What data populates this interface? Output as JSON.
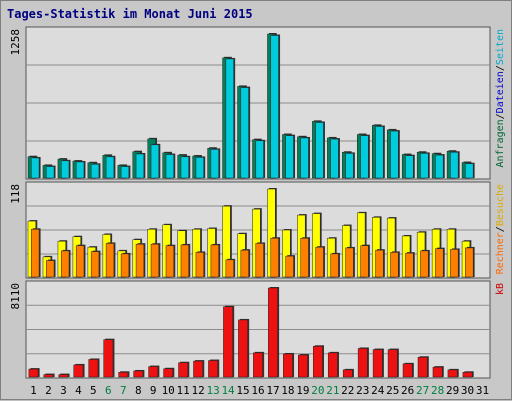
{
  "chart_data": {
    "type": "bar",
    "title": "Tages-Statistik im Monat Juni 2015",
    "categories": [
      "1",
      "2",
      "3",
      "4",
      "5",
      "6",
      "7",
      "8",
      "9",
      "10",
      "11",
      "12",
      "13",
      "14",
      "15",
      "16",
      "17",
      "18",
      "19",
      "20",
      "21",
      "22",
      "23",
      "24",
      "25",
      "26",
      "27",
      "28",
      "29",
      "30",
      "31"
    ],
    "weekend_days": [
      "6",
      "7",
      "13",
      "14",
      "20",
      "21",
      "27",
      "28"
    ],
    "colors": {
      "weekend_label": "#008040",
      "weekday_label": "#000000",
      "panel_bg": "#dcdcdc",
      "grid": "#8c8c8c",
      "anfragen": "#00805c",
      "dateien": "#00ccdd",
      "seiten": "#ffff00",
      "besuche": "#ff8000",
      "kb": "#ee1111",
      "legend_anfragen": "#006633",
      "legend_dateien": "#0000cc",
      "legend_seiten": "#00aacc",
      "legend_besuche": "#ddaa00",
      "legend_rechner": "#ff6600",
      "legend_kb": "#cc0000",
      "separator": "#000000"
    },
    "panels": [
      {
        "id": "requests",
        "max_label": "1258",
        "ylim": [
          0,
          1258
        ],
        "legend": [
          {
            "text": "Anfragen",
            "color_key": "legend_anfragen"
          },
          {
            "text": "/",
            "color_key": "separator"
          },
          {
            "text": "Dateien",
            "color_key": "legend_dateien"
          },
          {
            "text": "/",
            "color_key": "separator"
          },
          {
            "text": "Seiten",
            "color_key": "legend_seiten"
          }
        ],
        "series": [
          {
            "name": "Anfragen",
            "color_key": "anfragen",
            "values": [
              186,
              110,
              165,
              148,
              133,
              198,
              110,
              230,
              342,
              220,
              200,
              192,
              260,
              1050,
              800,
              335,
              1258,
              380,
              360,
              495,
              350,
              225,
              380,
              460,
              420,
              205,
              225,
              212,
              234,
              135,
              0
            ]
          },
          {
            "name": "Dateien",
            "color_key": "dateien",
            "values": [
              175,
              100,
              150,
              140,
              120,
              185,
              100,
              210,
              290,
              205,
              185,
              180,
              250,
              1040,
              790,
              325,
              1245,
              370,
              350,
              485,
              340,
              215,
              370,
              450,
              410,
              195,
              215,
              200,
              225,
              125,
              0
            ]
          }
        ]
      },
      {
        "id": "visits",
        "max_label": "118",
        "ylim": [
          0,
          118
        ],
        "legend": [
          {
            "text": "Rechner",
            "color_key": "legend_rechner"
          },
          {
            "text": "/",
            "color_key": "separator"
          },
          {
            "text": "Besuche",
            "color_key": "legend_besuche"
          }
        ],
        "series": [
          {
            "name": "Besuche",
            "color_key": "seiten",
            "values": [
              75,
              27,
              48,
              54,
              40,
              57,
              35,
              50,
              64,
              70,
              62,
              64,
              65,
              95,
              58,
              91,
              118,
              63,
              83,
              85,
              52,
              69,
              86,
              80,
              79,
              55,
              60,
              64,
              64,
              48,
              0
            ]
          },
          {
            "name": "Rechner",
            "color_key": "besuche",
            "values": [
              64,
              22,
              35,
              42,
              34,
              45,
              31,
              44,
              44,
              42,
              43,
              33,
              43,
              23,
              36,
              45,
              52,
              28,
              52,
              40,
              31,
              39,
              42,
              36,
              33,
              32,
              35,
              38,
              37,
              39,
              0
            ]
          }
        ]
      },
      {
        "id": "kb",
        "max_label": "8110",
        "ylim": [
          0,
          8110
        ],
        "legend": [
          {
            "text": "kB",
            "color_key": "legend_kb"
          }
        ],
        "series": [
          {
            "name": "kB",
            "color_key": "kb",
            "values": [
              720,
              220,
              220,
              1100,
              1600,
              3400,
              430,
              550,
              950,
              750,
              1300,
              1450,
              1500,
              6400,
              5200,
              2200,
              8110,
              2100,
              2000,
              2800,
              2200,
              650,
              2600,
              2500,
              2500,
              1200,
              1800,
              900,
              650,
              430,
              0
            ]
          }
        ]
      }
    ]
  }
}
